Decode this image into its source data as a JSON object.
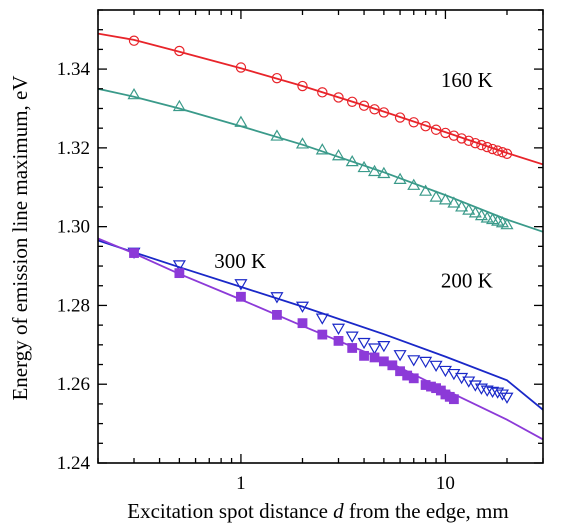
{
  "chart_data": {
    "type": "scatter",
    "title": "",
    "xlabel_parts": [
      "Excitation spot distance ",
      "d",
      " from the edge, mm"
    ],
    "ylabel": "Energy of emission line maximum, eV",
    "x_scale": "log",
    "xlim": [
      0.2,
      30
    ],
    "ylim": [
      1.24,
      1.355
    ],
    "x_ticks": [
      {
        "value": 1,
        "label": "1"
      },
      {
        "value": 10,
        "label": "10"
      }
    ],
    "y_ticks": [
      {
        "value": 1.24,
        "label": "1.24"
      },
      {
        "value": 1.26,
        "label": "1.26"
      },
      {
        "value": 1.28,
        "label": "1.28"
      },
      {
        "value": 1.3,
        "label": "1.30"
      },
      {
        "value": 1.32,
        "label": "1.32"
      },
      {
        "value": 1.34,
        "label": "1.34"
      }
    ],
    "grid": false,
    "legend": "none",
    "series": [
      {
        "marker": "circle-open",
        "color": "#e8242a",
        "x": [
          0.3,
          0.5,
          1.0,
          1.5,
          2.0,
          2.5,
          3.0,
          3.5,
          4.0,
          4.5,
          5.0,
          6.0,
          7.0,
          8.0,
          9.0,
          10.0,
          11.0,
          12.0,
          13.0,
          14.0,
          15.0,
          16.0,
          17.0,
          18.0,
          19.0,
          20.0
        ],
        "y": [
          1.3472,
          1.3446,
          1.3404,
          1.3377,
          1.3357,
          1.3341,
          1.3328,
          1.3317,
          1.3307,
          1.3298,
          1.329,
          1.3277,
          1.3265,
          1.3255,
          1.3246,
          1.3238,
          1.3231,
          1.3224,
          1.3218,
          1.3212,
          1.3207,
          1.3202,
          1.3197,
          1.3193,
          1.3189,
          1.3185
        ],
        "fit": [
          [
            0.2,
            1.349
          ],
          [
            0.3,
            1.3474
          ],
          [
            0.5,
            1.3444
          ],
          [
            1.0,
            1.3402
          ],
          [
            2.0,
            1.3357
          ],
          [
            5.0,
            1.3292
          ],
          [
            10.0,
            1.324
          ],
          [
            20.0,
            1.3187
          ],
          [
            30.0,
            1.3158
          ]
        ]
      },
      {
        "marker": "triangle-up-open",
        "color": "#3a9a8a",
        "x": [
          0.3,
          0.5,
          1.0,
          1.5,
          2.0,
          2.5,
          3.0,
          3.5,
          4.0,
          4.5,
          5.0,
          6.0,
          7.0,
          8.0,
          9.0,
          10.0,
          11.0,
          12.0,
          13.0,
          14.0,
          15.0,
          16.0,
          17.0,
          18.0,
          19.0,
          20.0
        ],
        "y": [
          1.3335,
          1.3305,
          1.3265,
          1.323,
          1.321,
          1.3195,
          1.318,
          1.3165,
          1.315,
          1.314,
          1.3135,
          1.312,
          1.3105,
          1.309,
          1.3075,
          1.3068,
          1.306,
          1.305,
          1.3042,
          1.3035,
          1.3028,
          1.3022,
          1.3018,
          1.3014,
          1.301,
          1.3005
        ],
        "fit": [
          [
            0.2,
            1.335
          ],
          [
            0.3,
            1.333
          ],
          [
            0.5,
            1.33
          ],
          [
            1.0,
            1.3255
          ],
          [
            2.0,
            1.3208
          ],
          [
            5.0,
            1.3138
          ],
          [
            10.0,
            1.308
          ],
          [
            20.0,
            1.3018
          ],
          [
            30.0,
            1.2987
          ]
        ]
      },
      {
        "marker": "triangle-down-open",
        "color": "#1a28c8",
        "x": [
          0.3,
          0.5,
          1.0,
          1.5,
          2.0,
          2.5,
          3.0,
          3.5,
          4.0,
          4.5,
          5.0,
          6.0,
          7.0,
          8.0,
          9.0,
          10.0,
          11.0,
          12.0,
          13.0,
          14.0,
          15.0,
          16.0,
          17.0,
          18.0,
          19.0,
          20.0
        ],
        "y": [
          1.2935,
          1.2903,
          1.2855,
          1.2822,
          1.2798,
          1.2768,
          1.2742,
          1.2722,
          1.2706,
          1.2692,
          1.2698,
          1.2675,
          1.2662,
          1.2658,
          1.2648,
          1.2635,
          1.2627,
          1.2617,
          1.2608,
          1.2598,
          1.259,
          1.2585,
          1.2582,
          1.258,
          1.2575,
          1.2567
        ],
        "fit": [
          [
            0.2,
            1.2965
          ],
          [
            0.3,
            1.2935
          ],
          [
            0.5,
            1.2897
          ],
          [
            1.0,
            1.2847
          ],
          [
            2.0,
            1.2797
          ],
          [
            5.0,
            1.2727
          ],
          [
            10.0,
            1.267
          ],
          [
            20.0,
            1.261
          ],
          [
            30.0,
            1.2535
          ]
        ]
      },
      {
        "marker": "square-filled",
        "color": "#8c3ad8",
        "x": [
          0.3,
          0.5,
          1.0,
          1.5,
          2.0,
          2.5,
          3.0,
          3.5,
          4.0,
          4.5,
          5.0,
          5.5,
          6.0,
          6.5,
          7.0,
          8.0,
          8.5,
          9.0,
          9.5,
          10.0,
          10.5,
          11.0
        ],
        "y": [
          1.2933,
          1.2882,
          1.2822,
          1.2776,
          1.2755,
          1.2726,
          1.271,
          1.2692,
          1.2672,
          1.2668,
          1.2658,
          1.2648,
          1.2633,
          1.2622,
          1.2615,
          1.2598,
          1.2594,
          1.259,
          1.2584,
          1.2574,
          1.2568,
          1.2562
        ],
        "fit": [
          [
            0.2,
            1.297
          ],
          [
            0.3,
            1.2932
          ],
          [
            0.5,
            1.288
          ],
          [
            1.0,
            1.2815
          ],
          [
            2.0,
            1.2748
          ],
          [
            5.0,
            1.2662
          ],
          [
            10.0,
            1.2585
          ],
          [
            20.0,
            1.251
          ],
          [
            30.0,
            1.246
          ]
        ]
      }
    ],
    "annotations": [
      {
        "text": "160 K",
        "x": 9.5,
        "y": 1.3355
      },
      {
        "text": "200 K",
        "x": 9.5,
        "y": 1.2845
      },
      {
        "text": "300 K",
        "x": 0.74,
        "y": 1.2895
      }
    ]
  }
}
